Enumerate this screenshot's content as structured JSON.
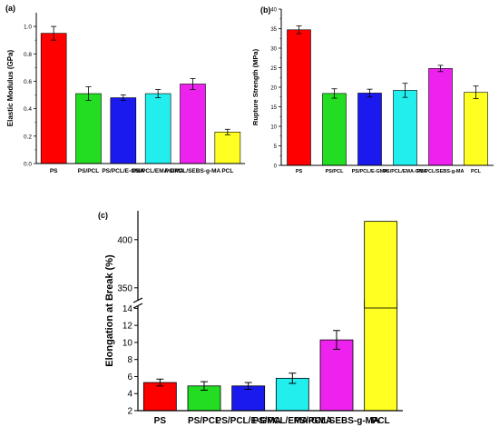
{
  "chart_data": [
    {
      "type": "bar",
      "panel_label": "(a)",
      "ylabel": "Elastic Modulus (GPa)",
      "ylim": [
        0,
        1.1
      ],
      "yticks": [
        "0.0",
        "0.2",
        "0.4",
        "0.6",
        "0.8",
        "1.0"
      ],
      "categories": [
        "PS",
        "PS/PCL",
        "PS/PCL/E-GMA",
        "PS/PCL/EMA-GMA",
        "PS/PCL/SEBS-g-MA",
        "PCL"
      ],
      "values": [
        0.95,
        0.51,
        0.48,
        0.51,
        0.58,
        0.23
      ],
      "errors": [
        0.05,
        0.05,
        0.02,
        0.03,
        0.04,
        0.02
      ],
      "colors": [
        "#ff0000",
        "#22dd22",
        "#1a1aee",
        "#22eeee",
        "#ee22ee",
        "#ffff22"
      ]
    },
    {
      "type": "bar",
      "panel_label": "(b)",
      "ylabel": "Rupture Strength (MPa)",
      "ylim": [
        0,
        40
      ],
      "yticks": [
        "0",
        "5",
        "10",
        "15",
        "20",
        "25",
        "30",
        "35",
        "40"
      ],
      "categories": [
        "PS",
        "PS/PCL",
        "PS/PCL/E-GMA",
        "PS/PCL/EMA-GMA",
        "PS/PCL/SEBS-g-MA",
        "PCL"
      ],
      "values": [
        34.7,
        18.4,
        18.5,
        19.2,
        24.8,
        18.7
      ],
      "errors": [
        1.0,
        1.2,
        1.0,
        1.8,
        0.8,
        1.6
      ],
      "colors": [
        "#ff0000",
        "#22dd22",
        "#1a1aee",
        "#22eeee",
        "#ee22ee",
        "#ffff22"
      ]
    },
    {
      "type": "bar",
      "panel_label": "(c)",
      "ylabel": "Elongation at Break  (%)",
      "broken_axis": true,
      "ylim_lower": [
        2,
        15
      ],
      "ylim_upper": [
        330,
        430
      ],
      "yticks_lower": [
        "2",
        "4",
        "6",
        "8",
        "10",
        "12",
        "14"
      ],
      "yticks_upper": [
        "350",
        "400"
      ],
      "categories": [
        "PS",
        "PS/PCL",
        "PS/PCL/E-GMA",
        "PS/PCL/EMA-GMA",
        "PS/PCL/SEBS-g-MA",
        "PCL"
      ],
      "values": [
        5.3,
        4.9,
        4.9,
        5.8,
        10.3,
        419
      ],
      "errors": [
        0.4,
        0.5,
        0.4,
        0.6,
        1.1,
        0
      ],
      "colors": [
        "#ff0000",
        "#22dd22",
        "#1a1aee",
        "#22eeee",
        "#ee22ee",
        "#ffff22"
      ]
    }
  ]
}
